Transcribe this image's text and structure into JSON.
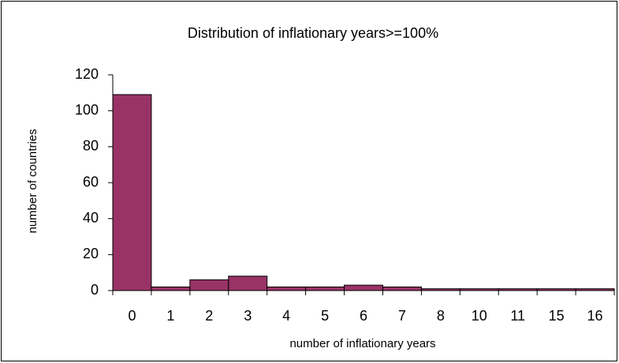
{
  "chart_data": {
    "type": "bar",
    "title": "Distribution of inflationary years>=100%",
    "x_label": "number of inflationary years",
    "y_label": "number of countries",
    "categories": [
      "0",
      "1",
      "2",
      "3",
      "4",
      "5",
      "6",
      "7",
      "8",
      "10",
      "11",
      "15",
      "16"
    ],
    "values": [
      109,
      2,
      6,
      8,
      2,
      2,
      3,
      2,
      1,
      1,
      1,
      1,
      1
    ],
    "color": "#993366",
    "ylim": [
      0,
      120
    ],
    "yticks": [
      0,
      20,
      40,
      60,
      80,
      100,
      120
    ],
    "grid": false
  }
}
